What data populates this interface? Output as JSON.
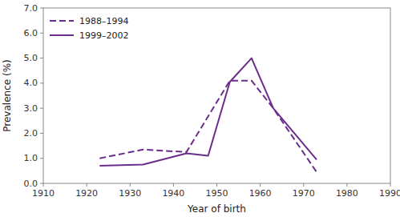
{
  "chart_data": {
    "type": "line",
    "xlabel": "Year of birth",
    "ylabel": "Prevalence (%)",
    "series": [
      {
        "name": "1988–1994",
        "color": "#6b2d8b",
        "line_style": "dashed",
        "x": [
          1923,
          1933,
          1943,
          1953,
          1958,
          1963,
          1973
        ],
        "values": [
          1.0,
          1.35,
          1.25,
          4.1,
          4.1,
          3.0,
          0.45
        ]
      },
      {
        "name": "1999–2002",
        "color": "#6b2d8b",
        "line_style": "solid",
        "x": [
          1923,
          1933,
          1943,
          1948,
          1953,
          1958,
          1963,
          1973
        ],
        "values": [
          0.7,
          0.75,
          1.2,
          1.1,
          4.05,
          5.0,
          3.0,
          0.95
        ]
      }
    ],
    "xlim": [
      1910,
      1990
    ],
    "ylim": [
      0.0,
      7.0
    ],
    "xticks": [
      1910,
      1920,
      1930,
      1940,
      1950,
      1960,
      1970,
      1980,
      1990
    ],
    "yticks": [
      {
        "value": 0.0,
        "label": "0.0"
      },
      {
        "value": 1.0,
        "label": "1.0"
      },
      {
        "value": 2.0,
        "label": "2.0"
      },
      {
        "value": 3.0,
        "label": "3.0"
      },
      {
        "value": 4.0,
        "label": "4.0"
      },
      {
        "value": 5.0,
        "label": "5.0"
      },
      {
        "value": 6.0,
        "label": "6.0"
      },
      {
        "value": 7.0,
        "label": "7.0"
      }
    ],
    "legend": "upper left",
    "grid": false
  }
}
